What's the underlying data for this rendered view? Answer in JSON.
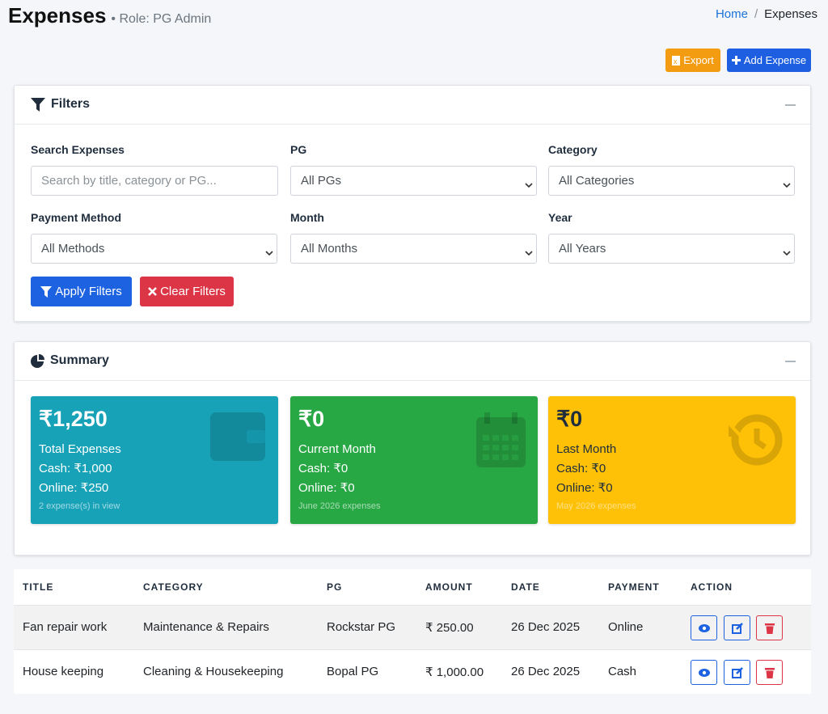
{
  "header": {
    "title": "Expenses",
    "role": "• Role: PG Admin",
    "breadcrumb": [
      "Home",
      "Expenses"
    ]
  },
  "actions": [
    "Export",
    "Add Expense"
  ],
  "filters": {
    "title": "Filters",
    "fields": [
      {
        "label": "Search Expenses",
        "placeholder": "Search by title, category or PG..."
      },
      {
        "label": "PG",
        "value": "All PGs"
      },
      {
        "label": "Category",
        "value": "All Categories"
      },
      {
        "label": "Payment Method",
        "value": "All Methods"
      },
      {
        "label": "Month",
        "value": "All Months"
      },
      {
        "label": "Year",
        "value": "All Years"
      }
    ],
    "buttons": [
      "Apply Filters",
      "Clear Filters"
    ]
  },
  "summary": {
    "title": "Summary",
    "cards": [
      {
        "amount": "₹1,250",
        "label": "Total Expenses",
        "cash": "Cash: ₹1,000",
        "online": "Online: ₹250",
        "note": "2 expense(s) in view"
      },
      {
        "amount": "₹0",
        "label": "Current Month",
        "cash": "Cash: ₹0",
        "online": "Online: ₹0",
        "note": "June 2026 expenses"
      },
      {
        "amount": "₹0",
        "label": "Last Month",
        "cash": "Cash: ₹0",
        "online": "Online: ₹0",
        "note": "May 2026 expenses"
      }
    ]
  },
  "table": {
    "columns": [
      "TITLE",
      "CATEGORY",
      "PG",
      "AMOUNT",
      "DATE",
      "PAYMENT",
      "ACTION"
    ],
    "rows": [
      [
        "Fan repair work",
        "Maintenance & Repairs",
        "Rockstar PG",
        "₹ 250.00",
        "26 Dec 2025",
        "Online"
      ],
      [
        "House keeping",
        "Cleaning & Housekeeping",
        "Bopal PG",
        "₹ 1,000.00",
        "26 Dec 2025",
        "Cash"
      ]
    ]
  }
}
